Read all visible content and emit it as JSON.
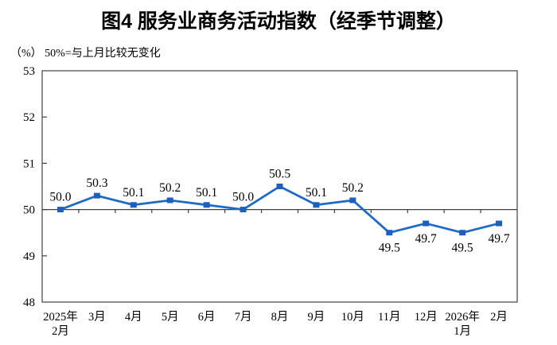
{
  "page": {
    "background": "#ffffff"
  },
  "chart_data": {
    "type": "line",
    "title": "图4 服务业商务活动指数（经季节调整）",
    "unit_note": "（%） 50%=与上月比较无变化",
    "categories": [
      "2025年\n2月",
      "3月",
      "4月",
      "5月",
      "6月",
      "7月",
      "8月",
      "9月",
      "10月",
      "11月",
      "12月",
      "2026年\n1月",
      "2月"
    ],
    "values": [
      50.0,
      50.3,
      50.1,
      50.2,
      50.1,
      50.0,
      50.5,
      50.1,
      50.2,
      49.5,
      49.7,
      49.5,
      49.7
    ],
    "data_labels": [
      "50.0",
      "50.3",
      "50.1",
      "50.2",
      "50.1",
      "50.0",
      "50.5",
      "50.1",
      "50.2",
      "49.5",
      "49.7",
      "49.5",
      "49.7"
    ],
    "ylim": [
      48,
      53
    ],
    "yticks": [
      48,
      49,
      50,
      51,
      52,
      53
    ],
    "baseline_value": 50,
    "grid": "off",
    "legend": "none",
    "colors": {
      "line": "#1f6bc4",
      "marker": "#1d5fbe",
      "axis": "#404040",
      "text": "#000000"
    }
  }
}
